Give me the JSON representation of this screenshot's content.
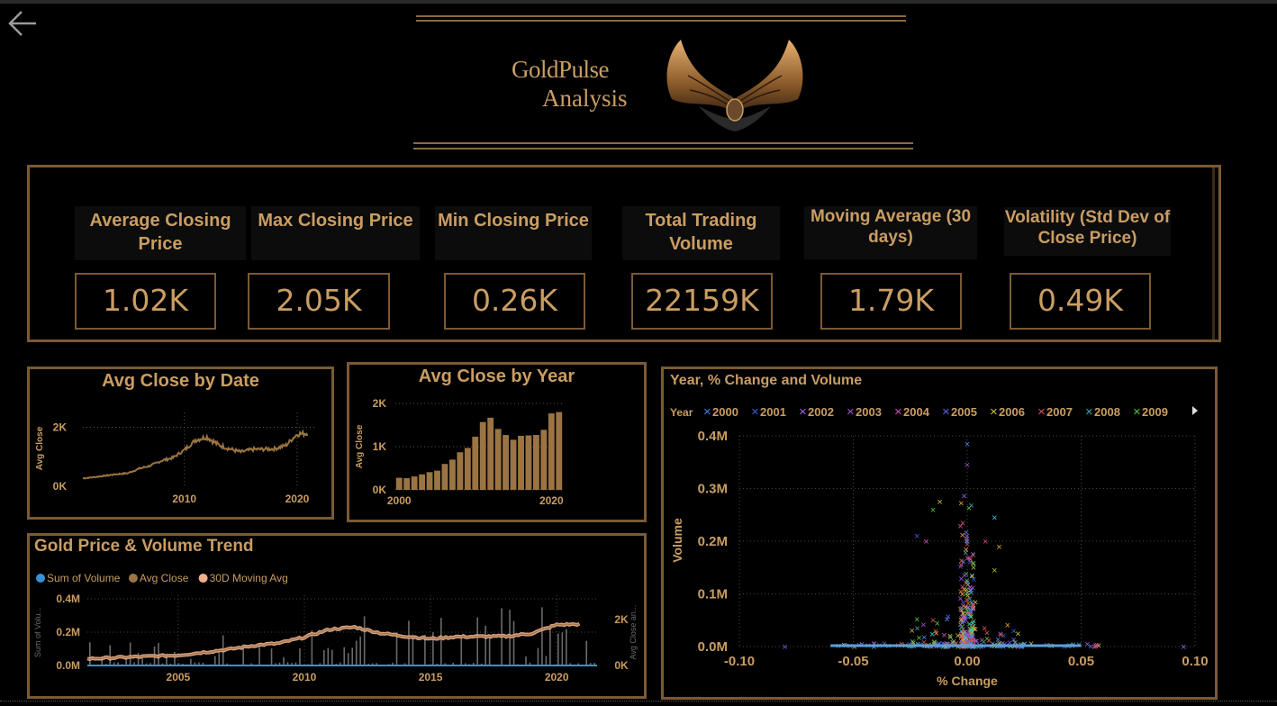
{
  "nav": {
    "back_icon": "arrow-left-icon"
  },
  "logo": {
    "line1": "GoldPulse",
    "line2": "Analysis",
    "emblem": "winged-emblem-icon"
  },
  "kpis": [
    {
      "label": "Average Closing Price",
      "value": "1.02K"
    },
    {
      "label": "Max Closing Price",
      "value": "2.05K"
    },
    {
      "label": "Min Closing Price",
      "value": "0.26K"
    },
    {
      "label": "Total Trading Volume",
      "value": "22159K"
    },
    {
      "label": "Moving Average (30 days)",
      "value": "1.79K"
    },
    {
      "label": "Volatility (Std Dev of Close Price)",
      "value": "0.49K"
    }
  ],
  "colors": {
    "gold": "#c99d63",
    "border": "#7a5a34",
    "bar": "#9a7443",
    "line": "#f0b090",
    "volume": "#3a8fd6"
  },
  "chart_data": [
    {
      "type": "line",
      "title": "Avg Close by Date",
      "xlabel": "",
      "ylabel": "Avg Close",
      "xticks": [
        "2010",
        "2020"
      ],
      "yticks": [
        "0K",
        "2K"
      ],
      "ylim": [
        0,
        2000
      ],
      "x": [
        2001,
        2002,
        2003,
        2004,
        2005,
        2006,
        2007,
        2008,
        2009,
        2010,
        2011,
        2012,
        2013,
        2014,
        2015,
        2016,
        2017,
        2018,
        2019,
        2020,
        2021
      ],
      "values": [
        270,
        310,
        360,
        410,
        445,
        600,
        700,
        870,
        970,
        1230,
        1570,
        1670,
        1410,
        1270,
        1160,
        1250,
        1260,
        1270,
        1390,
        1770,
        1800
      ]
    },
    {
      "type": "bar",
      "title": "Avg Close by Year",
      "xlabel": "",
      "ylabel": "Avg Close",
      "xticks": [
        "2000",
        "2020"
      ],
      "yticks": [
        "0K",
        "1K",
        "2K"
      ],
      "ylim": [
        0,
        2000
      ],
      "categories": [
        2000,
        2001,
        2002,
        2003,
        2004,
        2005,
        2006,
        2007,
        2008,
        2009,
        2010,
        2011,
        2012,
        2013,
        2014,
        2015,
        2016,
        2017,
        2018,
        2019,
        2020,
        2021
      ],
      "values": [
        280,
        270,
        310,
        360,
        410,
        445,
        600,
        700,
        870,
        970,
        1230,
        1570,
        1670,
        1410,
        1270,
        1160,
        1250,
        1260,
        1270,
        1390,
        1770,
        1800
      ]
    },
    {
      "type": "line",
      "title": "Gold Price & Volume Trend",
      "legend": [
        "Sum of Volume",
        "Avg Close",
        "30D Moving Avg"
      ],
      "ylabel_left": "Sum of Volu...",
      "ylabel_right": "Avg Close an...",
      "yticks_left": [
        "0.0M",
        "0.2M",
        "0.4M"
      ],
      "yticks_right": [
        "0K",
        "2K"
      ],
      "xticks": [
        "2005",
        "2010",
        "2015",
        "2020"
      ],
      "x": [
        2001,
        2003,
        2005,
        2007,
        2008,
        2009,
        2010,
        2011,
        2012,
        2013,
        2014,
        2015,
        2016,
        2017,
        2018,
        2019,
        2020,
        2021
      ],
      "values": [
        270,
        360,
        445,
        700,
        870,
        970,
        1230,
        1570,
        1670,
        1410,
        1270,
        1160,
        1250,
        1260,
        1270,
        1390,
        1770,
        1800
      ]
    },
    {
      "type": "scatter",
      "title": "Year, % Change and Volume",
      "legend_title": "Year",
      "legend": [
        "2000",
        "2001",
        "2002",
        "2003",
        "2004",
        "2005",
        "2006",
        "2007",
        "2008",
        "2009"
      ],
      "legend_colors": [
        "#4a7fe0",
        "#3c5ad8",
        "#9b5be0",
        "#9b54c8",
        "#c853b8",
        "#6060e8",
        "#c8c040",
        "#d05060",
        "#40a0a0",
        "#50c040"
      ],
      "xlabel": "% Change",
      "ylabel": "Volume",
      "xticks": [
        "-0.10",
        "-0.05",
        "0.00",
        "0.05",
        "0.10"
      ],
      "yticks": [
        "0.0M",
        "0.1M",
        "0.2M",
        "0.3M",
        "0.4M"
      ],
      "xlim": [
        -0.1,
        0.1
      ],
      "ylim": [
        0,
        0.4
      ]
    }
  ]
}
